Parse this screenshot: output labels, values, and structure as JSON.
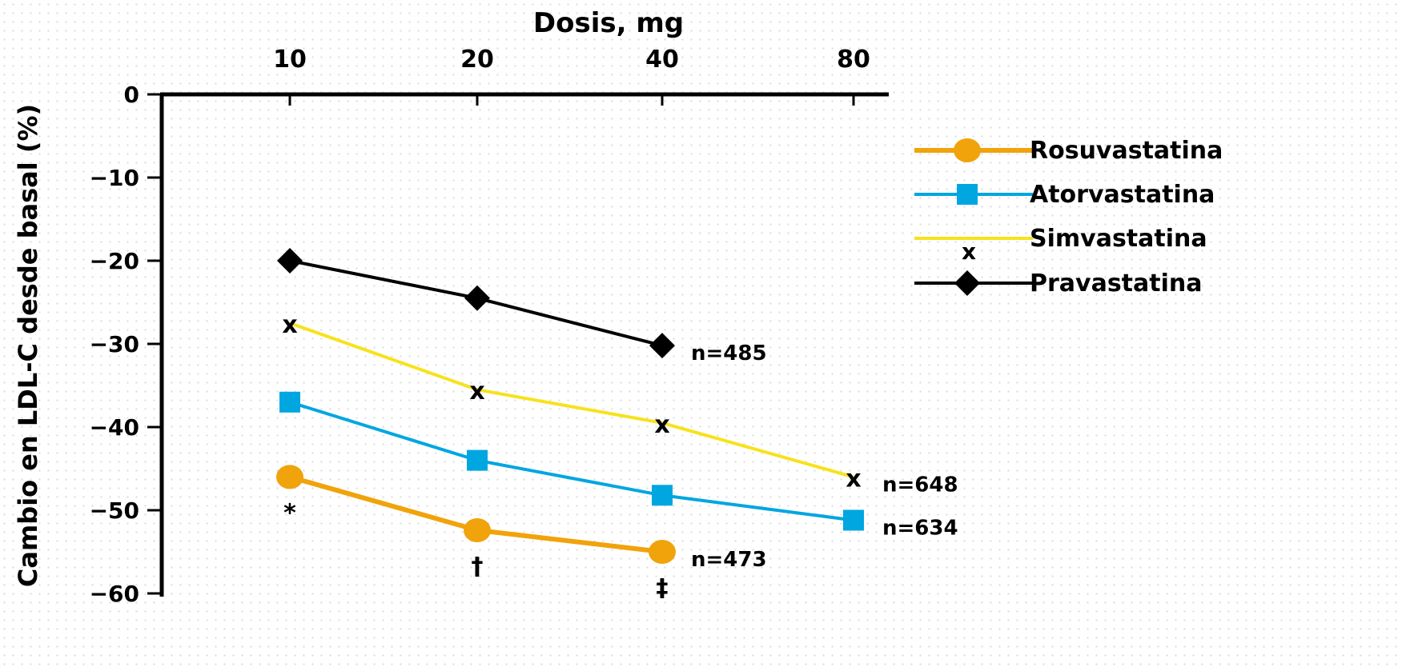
{
  "chart_data": {
    "type": "line",
    "xlabel": "Dosis, mg",
    "ylabel": "Cambio en LDL-C desde basal  (%)",
    "x_ticks": [
      "10",
      "20",
      "40",
      "80"
    ],
    "y_ticks": [
      "0",
      "−10",
      "−20",
      "−30",
      "−40",
      "−50",
      "−60"
    ],
    "ylim": [
      -60,
      0
    ],
    "legend_position": "right",
    "series": [
      {
        "name": "Rosuvastatina",
        "color": "#f0a30a",
        "marker": "circle",
        "x": [
          "10",
          "20",
          "40"
        ],
        "values": [
          -46,
          -52.4,
          -55
        ]
      },
      {
        "name": "Atorvastatina",
        "color": "#00a6e0",
        "marker": "square",
        "x": [
          "10",
          "20",
          "40",
          "80"
        ],
        "values": [
          -37,
          -44,
          -48.2,
          -51.2
        ]
      },
      {
        "name": "Simvastatina",
        "color": "#f7e21c",
        "marker": "x",
        "x": [
          "10",
          "20",
          "40",
          "80"
        ],
        "values": [
          -27.5,
          -35.5,
          -39.5,
          -46
        ]
      },
      {
        "name": "Pravastatina",
        "color": "#000000",
        "marker": "diamond",
        "x": [
          "10",
          "20",
          "40"
        ],
        "values": [
          -20,
          -24.5,
          -30.2
        ]
      }
    ],
    "annotations": [
      {
        "text": "n=485",
        "series": "Pravastatina"
      },
      {
        "text": "n=648",
        "series": "Simvastatina"
      },
      {
        "text": "n=634",
        "series": "Atorvastatina"
      },
      {
        "text": "n=473",
        "series": "Rosuvastatina"
      },
      {
        "text": "*",
        "series": "Rosuvastatina",
        "x": "10"
      },
      {
        "text": "†",
        "series": "Rosuvastatina",
        "x": "20"
      },
      {
        "text": "‡",
        "series": "Rosuvastatina",
        "x": "40"
      }
    ],
    "marker_glyph": "x"
  }
}
